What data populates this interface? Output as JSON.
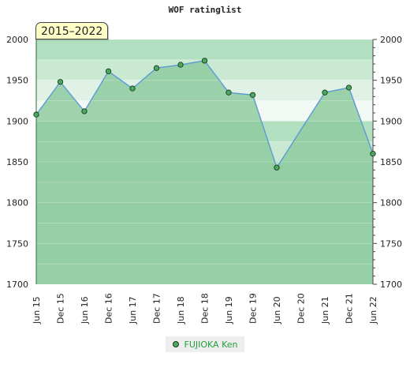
{
  "chart_data": {
    "type": "area",
    "title": "WOF ratinglist",
    "period_label": "2015–2022",
    "categories": [
      "Jun 15",
      "Dec 15",
      "Jun 16",
      "Dec 16",
      "Jun 17",
      "Dec 17",
      "Jun 18",
      "Dec 18",
      "Jun 19",
      "Dec 19",
      "Jun 20",
      "Dec 20",
      "Jun 21",
      "Dec 21",
      "Jun 22"
    ],
    "series": [
      {
        "name": "FUJIOKA Ken",
        "points": [
          {
            "x": "Jun 15",
            "y": 1908
          },
          {
            "x": "Dec 15",
            "y": 1948
          },
          {
            "x": "Jun 16",
            "y": 1912
          },
          {
            "x": "Dec 16",
            "y": 1961
          },
          {
            "x": "Jun 17",
            "y": 1940
          },
          {
            "x": "Dec 17",
            "y": 1965
          },
          {
            "x": "Jun 18",
            "y": 1969
          },
          {
            "x": "Dec 18",
            "y": 1974
          },
          {
            "x": "Jun 19",
            "y": 1935
          },
          {
            "x": "Dec 19",
            "y": 1932
          },
          {
            "x": "Jun 20",
            "y": 1843
          },
          {
            "x": "Jun 21",
            "y": 1935
          },
          {
            "x": "Dec 21",
            "y": 1941
          },
          {
            "x": "Jun 22",
            "y": 1860
          }
        ]
      }
    ],
    "y_ticks": [
      1700,
      1750,
      1800,
      1850,
      1900,
      1950,
      2000
    ],
    "ylim": [
      1700,
      2000
    ],
    "xlabel": "",
    "ylabel": "",
    "legend_position": "bottom-center",
    "grid": true,
    "colors": {
      "line": "#5b9bd5",
      "marker": "#4aa960",
      "area": "#8ecb9f",
      "legend_text": "#22a03c"
    }
  }
}
